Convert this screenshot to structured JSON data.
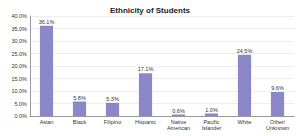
{
  "chart_data": {
    "type": "bar",
    "title": "Ethnicity of Students",
    "categories": [
      "Asian",
      "Black",
      "Filipino",
      "Hispanic",
      "Native American",
      "Pacific Islander",
      "White",
      "Other/Unknown"
    ],
    "values": [
      36.1,
      5.8,
      5.3,
      17.1,
      0.6,
      1.0,
      24.5,
      9.6
    ],
    "value_labels": [
      "36.1%",
      "5.8%",
      "5.3%",
      "17.1%",
      "0.6%",
      "1.0%",
      "24.5%",
      "9.6%"
    ],
    "data_labels": true,
    "color": "#8b88c9",
    "ylim": [
      0,
      40
    ],
    "yticks": [
      {
        "value": 0,
        "label": "0.0%"
      },
      {
        "value": 5,
        "label": "5.0%"
      },
      {
        "value": 10,
        "label": "10.0%"
      },
      {
        "value": 15,
        "label": "15.0%"
      },
      {
        "value": 20,
        "label": "20.0%"
      },
      {
        "value": 25,
        "label": "25.0%"
      },
      {
        "value": 30,
        "label": "30.0%"
      },
      {
        "value": 35,
        "label": "35.0%"
      },
      {
        "value": 40,
        "label": "40.0%"
      }
    ],
    "grid": true
  }
}
